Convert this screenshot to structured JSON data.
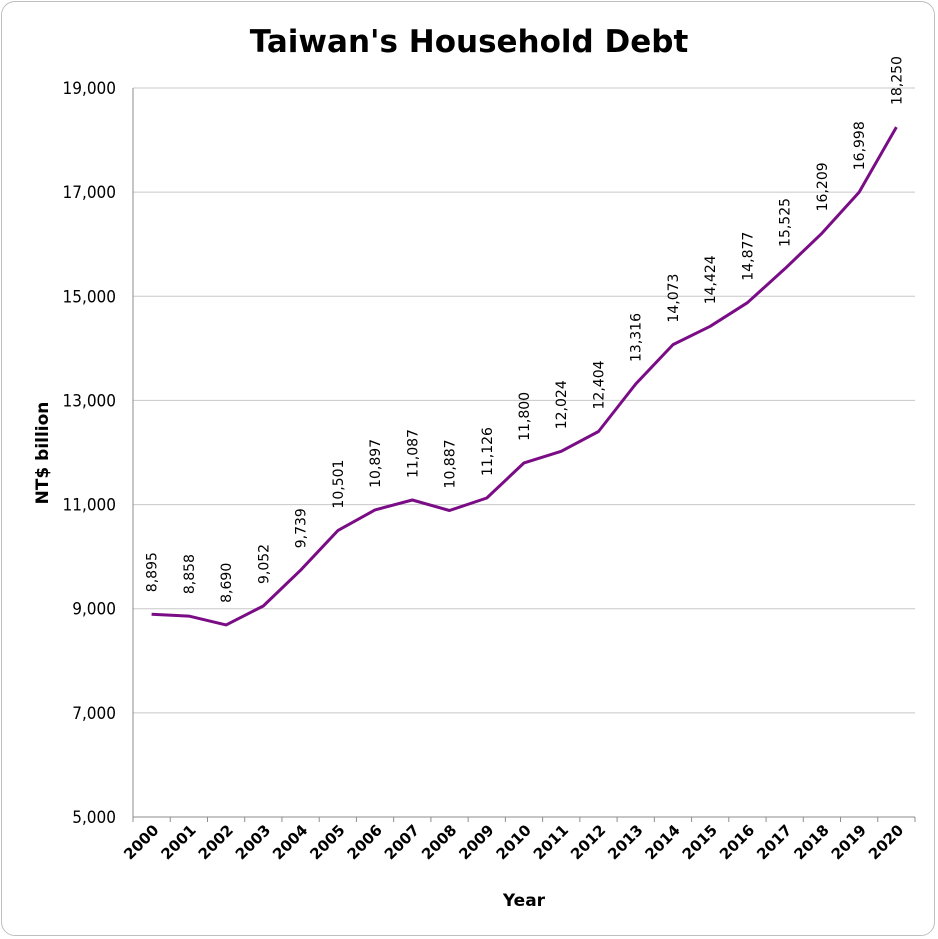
{
  "chart_data": {
    "type": "line",
    "title": "Taiwan's Household Debt",
    "xlabel": "Year",
    "ylabel": "NT$ billion",
    "ylim": [
      5000,
      19000
    ],
    "yticks": [
      5000,
      7000,
      9000,
      11000,
      13000,
      15000,
      17000,
      19000
    ],
    "ytick_labels": [
      "5,000",
      "7,000",
      "9,000",
      "11,000",
      "13,000",
      "15,000",
      "17,000",
      "19,000"
    ],
    "grid": true,
    "categories": [
      "2000",
      "2001",
      "2002",
      "2003",
      "2004",
      "2005",
      "2006",
      "2007",
      "2008",
      "2009",
      "2010",
      "2011",
      "2012",
      "2013",
      "2014",
      "2015",
      "2016",
      "2017",
      "2018",
      "2019",
      "2020"
    ],
    "series": [
      {
        "color": "#7a0d86",
        "values": [
          8895,
          8858,
          8690,
          9052,
          9739,
          10501,
          10897,
          11087,
          10887,
          11126,
          11800,
          12024,
          12404,
          13316,
          14073,
          14424,
          14877,
          15525,
          16209,
          16998,
          18250
        ],
        "labels": [
          "8,895",
          "8,858",
          "8,690",
          "9,052",
          "9,739",
          "10,501",
          "10,897",
          "11,087",
          "10,887",
          "11,126",
          "11,800",
          "12,024",
          "12,404",
          "13,316",
          "14,073",
          "14,424",
          "14,877",
          "15,525",
          "16,209",
          "16,998",
          "18,250"
        ]
      }
    ]
  }
}
